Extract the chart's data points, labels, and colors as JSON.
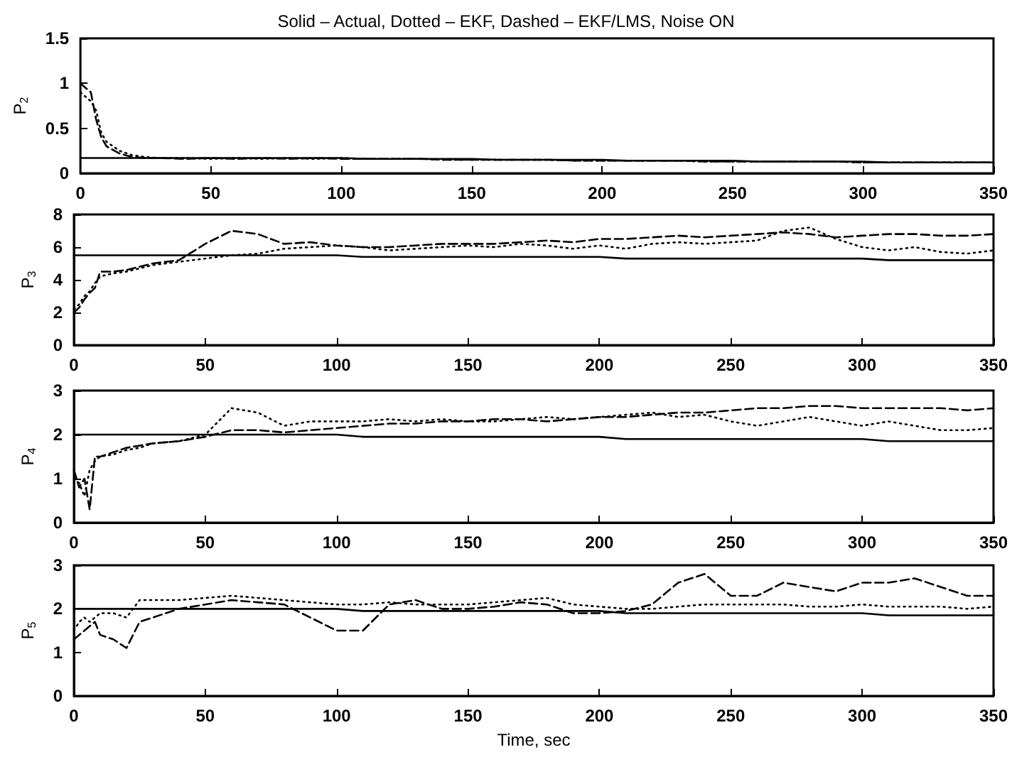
{
  "chart_data": [
    {
      "type": "line",
      "title": "Solid – Actual, Dotted – EKF, Dashed – EKF/LMS, Noise ON",
      "ylabel": "P$_{2}$",
      "xlim": [
        0,
        350
      ],
      "xticks": [
        0,
        50,
        100,
        150,
        200,
        250,
        300,
        350
      ],
      "ylim": [
        0,
        1.5
      ],
      "yticks": [
        0,
        0.5,
        1,
        1.5
      ],
      "grid": false,
      "marker": "none",
      "x": [
        0,
        2,
        4,
        6,
        8,
        10,
        15,
        20,
        25,
        30,
        40,
        50,
        60,
        70,
        80,
        90,
        100,
        110,
        120,
        130,
        140,
        150,
        160,
        170,
        180,
        190,
        200,
        210,
        220,
        230,
        240,
        250,
        260,
        270,
        280,
        290,
        300,
        310,
        320,
        330,
        340,
        350
      ],
      "series": [
        {
          "color": "#000000",
          "line_style": "solid",
          "values": [
            0.17,
            0.17,
            0.17,
            0.17,
            0.17,
            0.17,
            0.17,
            0.17,
            0.17,
            0.17,
            0.17,
            0.17,
            0.17,
            0.17,
            0.17,
            0.17,
            0.17,
            0.16,
            0.16,
            0.16,
            0.16,
            0.16,
            0.15,
            0.15,
            0.15,
            0.15,
            0.15,
            0.14,
            0.14,
            0.14,
            0.14,
            0.14,
            0.13,
            0.13,
            0.13,
            0.13,
            0.13,
            0.12,
            0.12,
            0.12,
            0.12,
            0.12
          ]
        },
        {
          "color": "#000000",
          "line_style": "dotted",
          "values": [
            0.9,
            0.85,
            0.8,
            0.7,
            0.45,
            0.35,
            0.25,
            0.2,
            0.18,
            0.17,
            0.17,
            0.16,
            0.17,
            0.16,
            0.17,
            0.16,
            0.17,
            0.16,
            0.16,
            0.16,
            0.15,
            0.15,
            0.15,
            0.15,
            0.15,
            0.14,
            0.14,
            0.14,
            0.14,
            0.14,
            0.13,
            0.13,
            0.13,
            0.13,
            0.13,
            0.13,
            0.12,
            0.12,
            0.12,
            0.12,
            0.12,
            0.12
          ]
        },
        {
          "color": "#000000",
          "line_style": "dashed",
          "values": [
            1.0,
            0.95,
            0.9,
            0.6,
            0.4,
            0.3,
            0.22,
            0.18,
            0.17,
            0.17,
            0.16,
            0.17,
            0.16,
            0.17,
            0.16,
            0.17,
            0.16,
            0.16,
            0.16,
            0.16,
            0.15,
            0.15,
            0.15,
            0.15,
            0.15,
            0.14,
            0.14,
            0.14,
            0.14,
            0.14,
            0.13,
            0.13,
            0.13,
            0.13,
            0.13,
            0.13,
            0.12,
            0.12,
            0.12,
            0.12,
            0.12,
            0.12
          ]
        }
      ]
    },
    {
      "type": "line",
      "ylabel": "P$_{3}$",
      "xlim": [
        0,
        350
      ],
      "xticks": [
        0,
        50,
        100,
        150,
        200,
        250,
        300,
        350
      ],
      "ylim": [
        0,
        8
      ],
      "yticks": [
        0,
        2,
        4,
        6,
        8
      ],
      "grid": false,
      "marker": "none",
      "x": [
        0,
        2,
        4,
        6,
        8,
        10,
        15,
        20,
        25,
        30,
        40,
        50,
        60,
        70,
        80,
        90,
        100,
        110,
        120,
        130,
        140,
        150,
        160,
        170,
        180,
        190,
        200,
        210,
        220,
        230,
        240,
        250,
        260,
        270,
        280,
        290,
        300,
        310,
        320,
        330,
        340,
        350
      ],
      "series": [
        {
          "color": "#000000",
          "line_style": "solid",
          "values": [
            5.5,
            5.5,
            5.5,
            5.5,
            5.5,
            5.5,
            5.5,
            5.5,
            5.5,
            5.5,
            5.5,
            5.5,
            5.5,
            5.5,
            5.5,
            5.5,
            5.5,
            5.4,
            5.4,
            5.4,
            5.4,
            5.4,
            5.4,
            5.4,
            5.4,
            5.4,
            5.4,
            5.3,
            5.3,
            5.3,
            5.3,
            5.3,
            5.3,
            5.3,
            5.3,
            5.3,
            5.3,
            5.2,
            5.2,
            5.2,
            5.2,
            5.2
          ]
        },
        {
          "color": "#000000",
          "line_style": "dotted",
          "values": [
            2.2,
            2.5,
            3,
            3.3,
            3.8,
            4.2,
            4.4,
            4.5,
            4.7,
            4.9,
            5.1,
            5.3,
            5.5,
            5.6,
            5.9,
            6.0,
            6.1,
            6.0,
            5.8,
            5.9,
            6.0,
            6.1,
            6.0,
            6.2,
            6.1,
            5.9,
            6.1,
            5.9,
            6.2,
            6.3,
            6.2,
            6.3,
            6.4,
            7.0,
            7.2,
            6.5,
            6.0,
            5.8,
            6.0,
            5.7,
            5.6,
            5.8
          ]
        },
        {
          "color": "#000000",
          "line_style": "dashed",
          "values": [
            2,
            2.3,
            2.8,
            3.2,
            3.5,
            4.5,
            4.5,
            4.6,
            4.8,
            5.0,
            5.2,
            6.2,
            7.0,
            6.8,
            6.2,
            6.3,
            6.1,
            6.0,
            6.0,
            6.1,
            6.2,
            6.2,
            6.2,
            6.3,
            6.4,
            6.3,
            6.5,
            6.5,
            6.6,
            6.7,
            6.6,
            6.7,
            6.8,
            6.9,
            6.8,
            6.6,
            6.7,
            6.8,
            6.8,
            6.7,
            6.7,
            6.8
          ]
        }
      ]
    },
    {
      "type": "line",
      "ylabel": "P$_{4}$",
      "xlim": [
        0,
        350
      ],
      "xticks": [
        0,
        50,
        100,
        150,
        200,
        250,
        300,
        350
      ],
      "ylim": [
        0,
        3
      ],
      "yticks": [
        0,
        1,
        2,
        3
      ],
      "grid": false,
      "marker": "none",
      "x": [
        0,
        2,
        4,
        6,
        8,
        10,
        15,
        20,
        25,
        30,
        40,
        50,
        60,
        70,
        80,
        90,
        100,
        110,
        120,
        130,
        140,
        150,
        160,
        170,
        180,
        190,
        200,
        210,
        220,
        230,
        240,
        250,
        260,
        270,
        280,
        290,
        300,
        310,
        320,
        330,
        340,
        350
      ],
      "series": [
        {
          "color": "#000000",
          "line_style": "solid",
          "values": [
            2.0,
            2.0,
            2.0,
            2.0,
            2.0,
            2.0,
            2.0,
            2.0,
            2.0,
            2.0,
            2.0,
            2.0,
            2.0,
            2.0,
            2.0,
            2.0,
            2.0,
            1.95,
            1.95,
            1.95,
            1.95,
            1.95,
            1.95,
            1.95,
            1.95,
            1.95,
            1.95,
            1.9,
            1.9,
            1.9,
            1.9,
            1.9,
            1.9,
            1.9,
            1.9,
            1.9,
            1.9,
            1.85,
            1.85,
            1.85,
            1.85,
            1.85
          ]
        },
        {
          "color": "#000000",
          "line_style": "dotted",
          "values": [
            1.0,
            0.9,
            0.6,
            1.2,
            1.4,
            1.5,
            1.55,
            1.65,
            1.7,
            1.8,
            1.85,
            2.0,
            2.6,
            2.5,
            2.2,
            2.3,
            2.3,
            2.3,
            2.35,
            2.3,
            2.35,
            2.3,
            2.3,
            2.35,
            2.4,
            2.35,
            2.4,
            2.45,
            2.5,
            2.4,
            2.45,
            2.3,
            2.2,
            2.3,
            2.4,
            2.3,
            2.2,
            2.3,
            2.2,
            2.1,
            2.1,
            2.15
          ]
        },
        {
          "color": "#000000",
          "line_style": "dashed",
          "values": [
            1.2,
            0.8,
            1.0,
            0.3,
            1.5,
            1.5,
            1.6,
            1.7,
            1.75,
            1.8,
            1.85,
            1.95,
            2.1,
            2.1,
            2.05,
            2.1,
            2.15,
            2.2,
            2.25,
            2.25,
            2.3,
            2.3,
            2.35,
            2.35,
            2.3,
            2.35,
            2.4,
            2.4,
            2.45,
            2.5,
            2.5,
            2.55,
            2.6,
            2.6,
            2.65,
            2.65,
            2.6,
            2.6,
            2.6,
            2.6,
            2.55,
            2.6
          ]
        }
      ]
    },
    {
      "type": "line",
      "ylabel": "P$_{5}$",
      "xlabel": "Time, sec",
      "xlim": [
        0,
        350
      ],
      "xticks": [
        0,
        50,
        100,
        150,
        200,
        250,
        300,
        350
      ],
      "ylim": [
        0,
        3
      ],
      "yticks": [
        0,
        1,
        2,
        3
      ],
      "grid": false,
      "marker": "none",
      "x": [
        0,
        2,
        4,
        6,
        8,
        10,
        15,
        20,
        25,
        30,
        40,
        50,
        60,
        70,
        80,
        90,
        100,
        110,
        120,
        130,
        140,
        150,
        160,
        170,
        180,
        190,
        200,
        210,
        220,
        230,
        240,
        250,
        260,
        270,
        280,
        290,
        300,
        310,
        320,
        330,
        340,
        350
      ],
      "series": [
        {
          "color": "#000000",
          "line_style": "solid",
          "values": [
            2.0,
            2.0,
            2.0,
            2.0,
            2.0,
            2.0,
            2.0,
            2.0,
            2.0,
            2.0,
            2.0,
            2.0,
            2.0,
            2.0,
            2.0,
            2.0,
            2.0,
            1.95,
            1.95,
            1.95,
            1.95,
            1.95,
            1.95,
            1.95,
            1.95,
            1.95,
            1.95,
            1.9,
            1.9,
            1.9,
            1.9,
            1.9,
            1.9,
            1.9,
            1.9,
            1.9,
            1.9,
            1.85,
            1.85,
            1.85,
            1.85,
            1.85
          ]
        },
        {
          "color": "#000000",
          "line_style": "dotted",
          "values": [
            1.5,
            1.7,
            1.8,
            1.7,
            1.8,
            1.9,
            1.9,
            1.8,
            2.2,
            2.2,
            2.2,
            2.25,
            2.3,
            2.25,
            2.2,
            2.15,
            2.1,
            2.1,
            2.15,
            2.1,
            2.1,
            2.1,
            2.15,
            2.2,
            2.25,
            2.1,
            2.05,
            2.0,
            2.0,
            2.05,
            2.1,
            2.1,
            2.1,
            2.1,
            2.05,
            2.05,
            2.1,
            2.05,
            2.05,
            2.05,
            2.0,
            2.05
          ]
        },
        {
          "color": "#000000",
          "line_style": "dashed",
          "values": [
            1.3,
            1.4,
            1.5,
            1.6,
            1.7,
            1.4,
            1.3,
            1.1,
            1.7,
            1.8,
            2.0,
            2.1,
            2.2,
            2.15,
            2.1,
            1.8,
            1.5,
            1.5,
            2.1,
            2.2,
            2.0,
            2.0,
            2.05,
            2.15,
            2.1,
            1.9,
            1.9,
            1.95,
            2.1,
            2.6,
            2.8,
            2.3,
            2.3,
            2.6,
            2.5,
            2.4,
            2.6,
            2.6,
            2.7,
            2.5,
            2.3,
            2.3
          ]
        }
      ]
    }
  ]
}
